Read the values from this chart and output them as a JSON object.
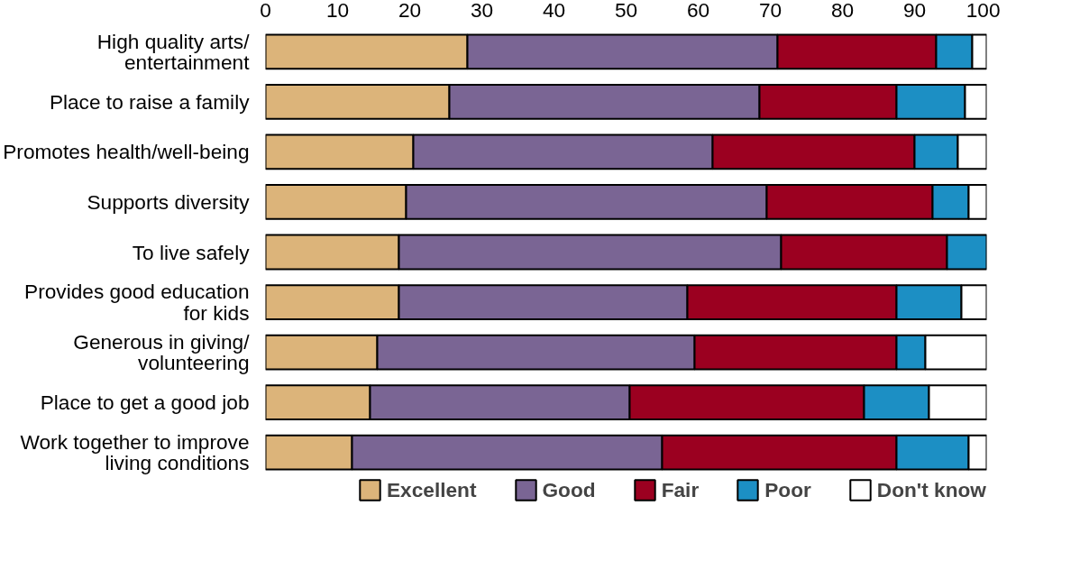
{
  "chart_data": {
    "type": "bar",
    "orientation": "horizontal",
    "stacked": true,
    "categories": [
      "High quality arts/\nentertainment",
      "Place to raise a family",
      "Promotes health/well-being",
      "Supports diversity",
      "To live safely",
      "Provides good education\nfor kids",
      "Generous in giving/\nvolunteering",
      "Place to get a good job",
      "Work together to improve\nliving conditions"
    ],
    "series": [
      {
        "name": "Excellent",
        "color": "#dcb47a",
        "values": [
          28,
          25.5,
          20.5,
          19.5,
          18.5,
          18.5,
          15.5,
          14.5,
          12
        ]
      },
      {
        "name": "Good",
        "color": "#7a6594",
        "values": [
          43,
          43,
          41.5,
          50,
          53,
          40,
          44,
          36,
          43
        ]
      },
      {
        "name": "Fair",
        "color": "#9b0020",
        "values": [
          22,
          19,
          28,
          23,
          23,
          29,
          28,
          32.5,
          32.5
        ]
      },
      {
        "name": "Poor",
        "color": "#1c8fc4",
        "values": [
          5,
          9.5,
          6,
          5,
          5.5,
          9,
          4,
          9,
          10
        ]
      },
      {
        "name": "Don't know",
        "color": "#ffffff",
        "values": [
          2,
          3,
          4,
          2.5,
          0,
          3.5,
          8.5,
          8,
          2.5
        ]
      }
    ],
    "xlim": [
      0,
      100
    ],
    "xticks": [
      0,
      10,
      20,
      30,
      40,
      50,
      60,
      70,
      80,
      90,
      100
    ],
    "grid": false,
    "legend": "bottom"
  }
}
